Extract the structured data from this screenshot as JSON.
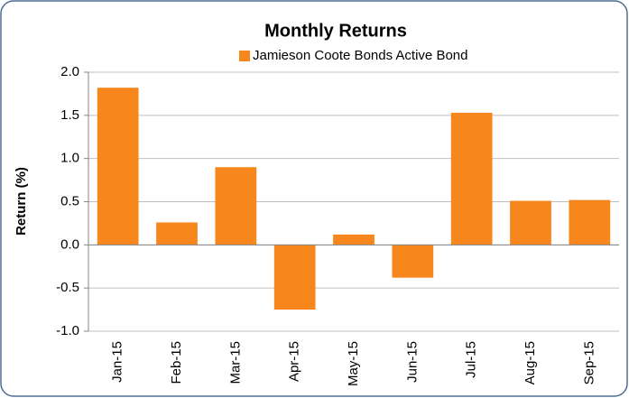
{
  "chart_data": {
    "type": "bar",
    "title": "Monthly Returns",
    "legend": "Jamieson Coote Bonds Active Bond",
    "ylabel": "Return (%)",
    "categories": [
      "Jan-15",
      "Feb-15",
      "Mar-15",
      "Apr-15",
      "May-15",
      "Jun-15",
      "Jul-15",
      "Aug-15",
      "Sep-15"
    ],
    "values": [
      1.82,
      0.26,
      0.9,
      -0.75,
      0.12,
      -0.38,
      1.53,
      0.51,
      0.52
    ],
    "color": "#f7861c",
    "ylim": [
      -1,
      2
    ],
    "yticks": [
      {
        "value": 2,
        "label": "2.0"
      },
      1.5,
      {
        "value": 1,
        "label": "1.0"
      },
      0.5,
      {
        "value": 0,
        "label": "0.0"
      },
      -0.5,
      {
        "value": -1,
        "label": "-1.0"
      }
    ],
    "negative_tick_color": "#ff0000",
    "grid": true
  }
}
